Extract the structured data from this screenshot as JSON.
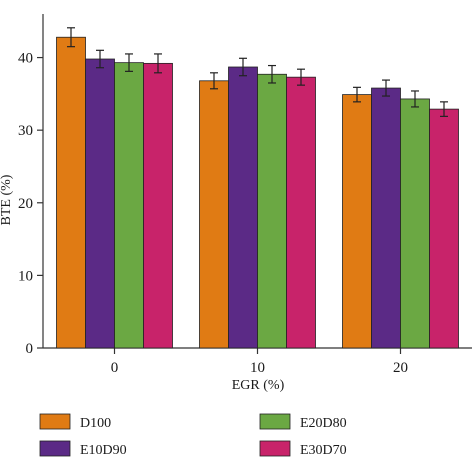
{
  "chart_data": {
    "type": "bar",
    "xlabel": "EGR (%)",
    "ylabel": "BTE (%)",
    "categories": [
      "0",
      "10",
      "20"
    ],
    "ylim": [
      0,
      46
    ],
    "yticks": [
      "0",
      "10",
      "20",
      "30",
      "40"
    ],
    "grid": false,
    "legend_position": "bottom",
    "series": [
      {
        "name": "D100",
        "color": "#E07B14",
        "values": [
          42.8,
          36.8,
          34.9
        ],
        "errors": [
          1.3,
          1.1,
          1.0
        ]
      },
      {
        "name": "E10D90",
        "color": "#5B2A86",
        "values": [
          39.8,
          38.7,
          35.8
        ],
        "errors": [
          1.2,
          1.2,
          1.1
        ]
      },
      {
        "name": "E20D80",
        "color": "#6BA843",
        "values": [
          39.3,
          37.7,
          34.3
        ],
        "errors": [
          1.2,
          1.2,
          1.1
        ]
      },
      {
        "name": "E30D70",
        "color": "#C8236A",
        "values": [
          39.2,
          37.3,
          32.9
        ],
        "errors": [
          1.3,
          1.1,
          1.0
        ]
      }
    ]
  }
}
